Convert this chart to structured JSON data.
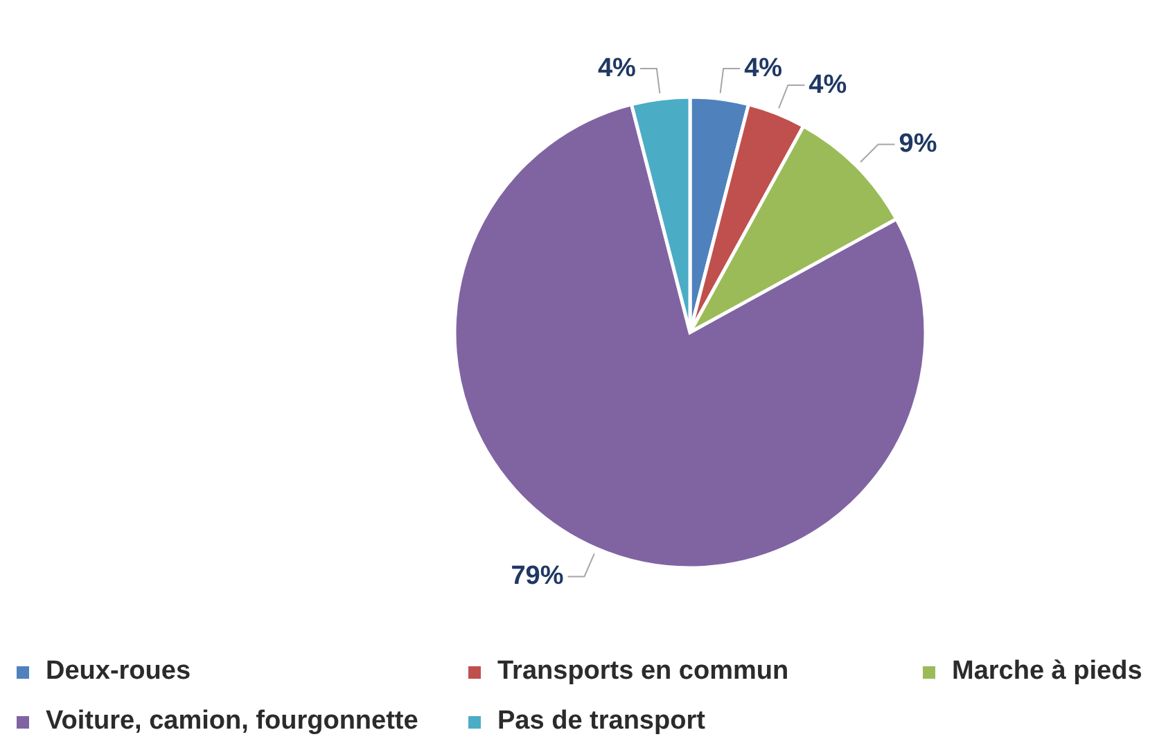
{
  "chart_data": {
    "type": "pie",
    "categories": [
      "Deux-roues",
      "Transports en commun",
      "Marche à pieds",
      "Voiture, camion, fourgonnette",
      "Pas de transport"
    ],
    "values": [
      4,
      4,
      9,
      79,
      4
    ],
    "colors": [
      "#4f81bd",
      "#c0504d",
      "#9bbb59",
      "#8064a2",
      "#4bacc6"
    ],
    "value_labels": [
      "4%",
      "4%",
      "9%",
      "79%",
      "4%"
    ],
    "legend": "bottom"
  }
}
